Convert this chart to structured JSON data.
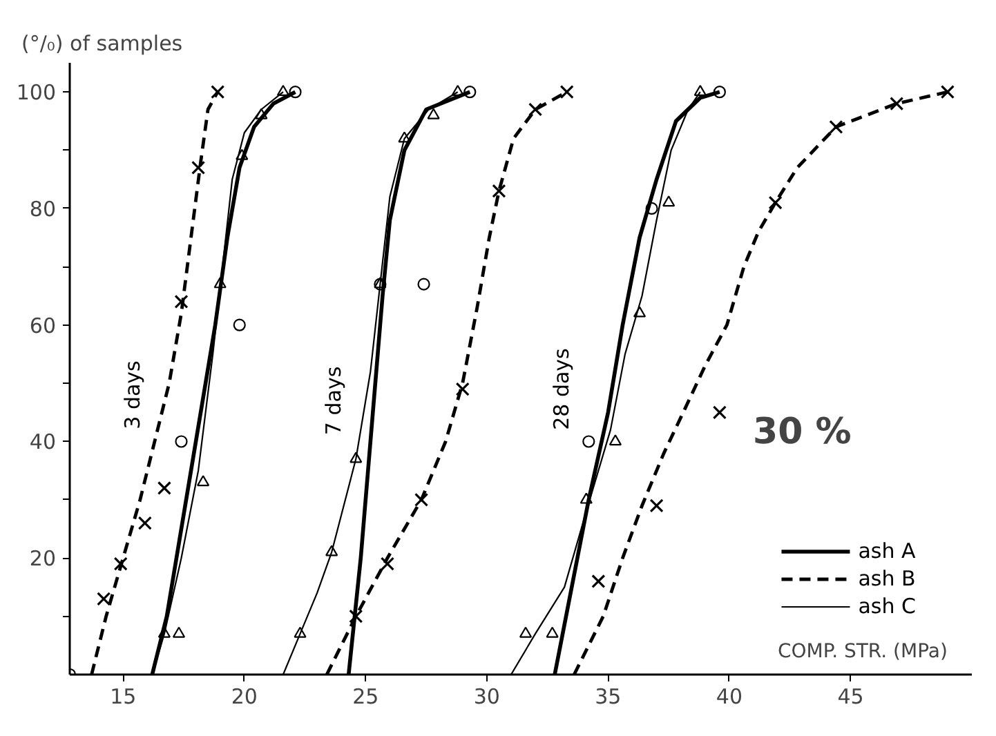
{
  "chart_data": {
    "type": "line",
    "ylabel": "(°/₀) of samples",
    "xlabel": "COMP. STR. (MPa)",
    "xlim": [
      12.8,
      50
    ],
    "ylim": [
      0,
      105
    ],
    "xticks": [
      15,
      20,
      25,
      30,
      35,
      40,
      45
    ],
    "yticks": [
      {
        "value": 10,
        "label": null
      },
      20,
      {
        "value": 30,
        "label": null
      },
      40,
      {
        "value": 50,
        "label": null
      },
      60,
      {
        "value": 70,
        "label": null
      },
      80,
      {
        "value": 90,
        "label": null
      },
      100
    ],
    "grid": false,
    "legend": "bottom right",
    "tick_labels": "xy",
    "annotations": [
      "3 days",
      "7 days",
      "28 days",
      "30 %"
    ],
    "series": [
      {
        "name": "ash A",
        "line_style": "solid",
        "color": "#000000",
        "x": [
          16.2,
          16.8,
          17.4,
          18.2,
          18.8,
          19.3,
          19.8,
          20.4,
          21.2,
          22.1,
          null,
          24.3,
          24.8,
          25.3,
          25.7,
          26.0,
          26.6,
          27.5,
          29.3,
          null,
          32.8,
          33.5,
          34.2,
          35.0,
          35.6,
          36.3,
          37.0,
          37.8,
          38.8,
          39.6
        ],
        "values": [
          0,
          10,
          25,
          45,
          60,
          75,
          87,
          94,
          98,
          100,
          null,
          0,
          20,
          45,
          65,
          78,
          90,
          97,
          100,
          null,
          0,
          15,
          30,
          45,
          60,
          75,
          85,
          95,
          99,
          100
        ]
      },
      {
        "name": "ash B",
        "line_style": "dashed",
        "color": "#000000",
        "x": [
          13.7,
          14.3,
          15.0,
          15.7,
          16.3,
          16.9,
          17.4,
          17.8,
          18.2,
          18.5,
          18.9,
          null,
          23.4,
          24.6,
          25.9,
          27.3,
          28.3,
          29.0,
          29.6,
          30.1,
          30.5,
          31.1,
          32.0,
          33.3,
          null,
          33.6,
          34.8,
          35.6,
          36.4,
          37.3,
          38.1,
          39.0,
          39.9,
          40.6,
          41.2,
          41.9,
          42.8,
          44.4,
          46.9,
          49.0
        ],
        "values": [
          0,
          10,
          20,
          30,
          40,
          50,
          62,
          75,
          88,
          97,
          100,
          null,
          0,
          10,
          20,
          30,
          40,
          50,
          63,
          75,
          83,
          92,
          97,
          100,
          null,
          0,
          10,
          20,
          29,
          38,
          45,
          53,
          60,
          70,
          76,
          81,
          87,
          94,
          98,
          100
        ]
      },
      {
        "name": "ash C",
        "line_style": "solid",
        "color": "#000000",
        "x": [
          16.2,
          16.7,
          17.4,
          18.1,
          18.7,
          19.1,
          19.5,
          20.0,
          20.7,
          21.6,
          null,
          21.6,
          22.3,
          23.0,
          23.6,
          24.6,
          25.2,
          25.6,
          26.0,
          26.6,
          27.6,
          28.8,
          null,
          31.0,
          32.0,
          33.2,
          34.1,
          35.1,
          35.7,
          36.4,
          37.0,
          37.6,
          38.3,
          38.8
        ],
        "values": [
          0,
          7,
          20,
          35,
          55,
          70,
          85,
          93,
          97,
          100,
          null,
          0,
          7,
          14,
          21,
          37,
          52,
          67,
          82,
          92,
          97,
          100,
          null,
          0,
          7,
          15,
          28,
          42,
          55,
          65,
          78,
          90,
          97,
          100
        ]
      },
      {
        "type": "scatter",
        "marker": "circle",
        "color": "#000000",
        "x": [
          12.8,
          17.4,
          19.8,
          22.1,
          25.6,
          27.4,
          29.3,
          34.2,
          36.8,
          39.6
        ],
        "values": [
          0,
          40,
          60,
          100,
          67,
          67,
          100,
          40,
          80,
          100
        ]
      },
      {
        "type": "scatter",
        "marker": "cross",
        "color": "#000000",
        "x": [
          14.2,
          14.9,
          15.9,
          16.7,
          17.4,
          18.1,
          18.9,
          24.6,
          25.9,
          27.3,
          29.0,
          30.5,
          32.0,
          33.3,
          34.6,
          37.0,
          39.6,
          41.9,
          44.4,
          46.9,
          49.0
        ],
        "values": [
          13,
          19,
          26,
          32,
          64,
          87,
          100,
          10,
          19,
          30,
          49,
          83,
          97,
          100,
          16,
          29,
          45,
          81,
          94,
          98,
          100
        ]
      },
      {
        "type": "scatter",
        "marker": "triangle",
        "color": "#000000",
        "x": [
          16.7,
          17.3,
          18.3,
          19.0,
          19.9,
          20.7,
          21.6,
          22.3,
          23.6,
          24.6,
          25.6,
          26.6,
          27.8,
          28.8,
          31.6,
          32.7,
          34.1,
          35.3,
          36.3,
          37.5,
          38.8
        ],
        "values": [
          7,
          7,
          33,
          67,
          89,
          96,
          100,
          7,
          21,
          37,
          67,
          92,
          96,
          100,
          7,
          7,
          30,
          40,
          62,
          81,
          100
        ]
      }
    ]
  }
}
